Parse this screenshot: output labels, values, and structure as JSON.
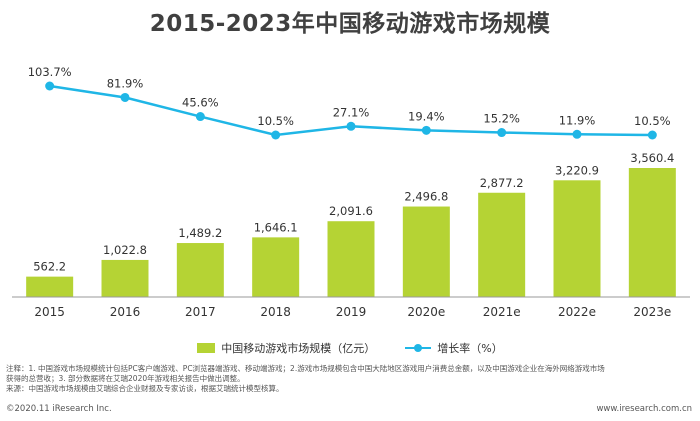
{
  "title": "2015-2023年中国移动游戏市场规模",
  "chart_data": {
    "type": "bar",
    "categories": [
      "2015",
      "2016",
      "2017",
      "2018",
      "2019",
      "2020e",
      "2021e",
      "2022e",
      "2023e"
    ],
    "series": [
      {
        "name": "中国移动游戏市场规模（亿元）",
        "type": "bar",
        "values": [
          562.2,
          1022.8,
          1489.2,
          1646.1,
          2091.6,
          2496.8,
          2877.2,
          3220.9,
          3560.4
        ],
        "labels": [
          "562.2",
          "1,022.8",
          "1,489.2",
          "1,646.1",
          "2,091.6",
          "2,496.8",
          "2,877.2",
          "3,220.9",
          "3,560.4"
        ]
      },
      {
        "name": "增长率（%）",
        "type": "line",
        "values": [
          103.7,
          81.9,
          45.6,
          10.5,
          27.1,
          19.4,
          15.2,
          11.9,
          10.5
        ],
        "labels": [
          "103.7%",
          "81.9%",
          "45.6%",
          "10.5%",
          "27.1%",
          "19.4%",
          "15.2%",
          "11.9%",
          "10.5%"
        ]
      }
    ],
    "colors": {
      "bar": "#b5d334",
      "line": "#1fb6e6"
    },
    "legend_position": "bottom"
  },
  "legend": {
    "bar_label": "中国移动游戏市场规模（亿元）",
    "line_label": "增长率（%）"
  },
  "notes": {
    "line1": "注释：1. 中国游戏市场规模统计包括PC客户端游戏、PC浏览器端游戏、移动端游戏；2.游戏市场规模包含中国大陆地区游戏用户消费总金额，以及中国游戏企业在海外网络游戏市场",
    "line2": "获得的总营收；3. 部分数据将在艾瑞2020年游戏相关报告中做出调整。",
    "line3": "来源：中国游戏市场规模由艾瑞综合企业财报及专家访谈，根据艾瑞统计模型核算。"
  },
  "footer": {
    "left": "©2020.11 iResearch Inc.",
    "right": "www.iresearch.com.cn"
  }
}
